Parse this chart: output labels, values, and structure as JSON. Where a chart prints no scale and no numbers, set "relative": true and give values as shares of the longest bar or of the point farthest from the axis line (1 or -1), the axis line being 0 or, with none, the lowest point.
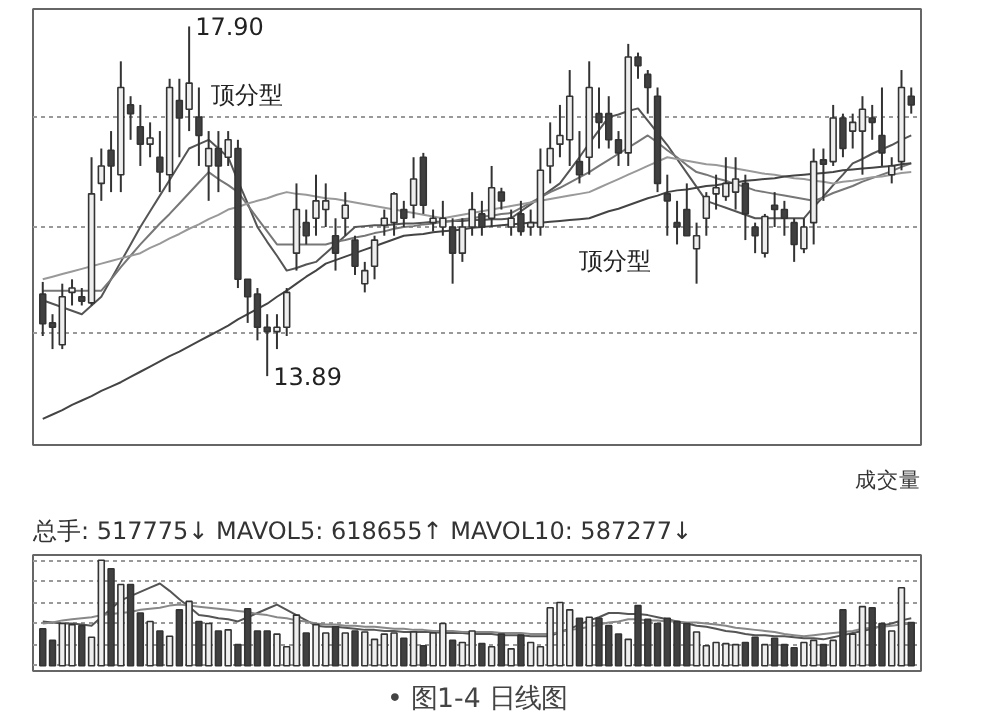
{
  "chart_data": [
    {
      "type": "candlestick",
      "categories": [
        null,
        null,
        null,
        null,
        null,
        null,
        null,
        null,
        null,
        null,
        null,
        null,
        null,
        null,
        null,
        null,
        null,
        null,
        null,
        null,
        null,
        null,
        null,
        null,
        null,
        null,
        null,
        null,
        null,
        null,
        null,
        null,
        null,
        null,
        null,
        null,
        null,
        null,
        null,
        null,
        null,
        null,
        null,
        null,
        null,
        null,
        null,
        null,
        null,
        null,
        null,
        null,
        null,
        null,
        null,
        null,
        null,
        null,
        null,
        null,
        null,
        null,
        null,
        null,
        null,
        null,
        null,
        null,
        null,
        null,
        null,
        null,
        null,
        null,
        null,
        null,
        null,
        null,
        null,
        null,
        null,
        null,
        null,
        null,
        null,
        null,
        null,
        null,
        null,
        null
      ],
      "ohlc": [
        [
          14.83,
          14.97,
          14.35,
          14.49
        ],
        [
          14.5,
          14.6,
          14.2,
          14.45
        ],
        [
          14.25,
          14.95,
          14.2,
          14.8
        ],
        [
          14.85,
          15.0,
          14.7,
          14.9
        ],
        [
          14.8,
          14.9,
          14.7,
          14.75
        ],
        [
          14.73,
          16.4,
          14.7,
          15.98
        ],
        [
          16.1,
          16.5,
          15.9,
          16.3
        ],
        [
          16.48,
          16.7,
          16.0,
          16.3
        ],
        [
          16.2,
          17.5,
          16.0,
          17.2
        ],
        [
          17.0,
          17.1,
          16.6,
          16.9
        ],
        [
          16.75,
          17.0,
          16.3,
          16.55
        ],
        [
          16.55,
          16.8,
          16.4,
          16.62
        ],
        [
          16.4,
          16.7,
          16.0,
          16.23
        ],
        [
          16.2,
          17.3,
          16.0,
          17.2
        ],
        [
          17.05,
          17.3,
          16.4,
          16.85
        ],
        [
          16.95,
          17.9,
          16.7,
          17.25
        ],
        [
          16.86,
          17.2,
          16.3,
          16.65
        ],
        [
          16.3,
          16.7,
          15.9,
          16.5
        ],
        [
          16.5,
          16.7,
          16.0,
          16.3
        ],
        [
          16.4,
          16.7,
          16.3,
          16.6
        ],
        [
          16.5,
          16.6,
          14.9,
          15.0
        ],
        [
          15.0,
          15.0,
          14.5,
          14.8
        ],
        [
          14.83,
          14.9,
          14.3,
          14.45
        ],
        [
          14.45,
          14.6,
          13.89,
          14.4
        ],
        [
          14.4,
          14.6,
          14.2,
          14.45
        ],
        [
          14.45,
          14.9,
          14.35,
          14.85
        ],
        [
          15.3,
          16.1,
          15.1,
          15.8
        ],
        [
          15.65,
          15.8,
          15.4,
          15.5
        ],
        [
          15.7,
          16.2,
          15.5,
          15.9
        ],
        [
          15.8,
          16.1,
          15.6,
          15.9
        ],
        [
          15.5,
          15.7,
          15.1,
          15.3
        ],
        [
          15.7,
          16.0,
          15.5,
          15.85
        ],
        [
          15.45,
          15.5,
          15.05,
          15.15
        ],
        [
          14.95,
          15.2,
          14.85,
          15.1
        ],
        [
          15.15,
          15.5,
          15.0,
          15.45
        ],
        [
          15.62,
          15.8,
          15.5,
          15.7
        ],
        [
          15.65,
          16.0,
          15.5,
          15.98
        ],
        [
          15.8,
          15.9,
          15.6,
          15.7
        ],
        [
          15.85,
          16.4,
          15.7,
          16.15
        ],
        [
          16.4,
          16.45,
          15.75,
          15.85
        ],
        [
          15.65,
          15.8,
          15.55,
          15.7
        ],
        [
          15.6,
          15.9,
          15.5,
          15.7
        ],
        [
          15.6,
          15.7,
          14.95,
          15.3
        ],
        [
          15.3,
          15.7,
          15.2,
          15.6
        ],
        [
          15.6,
          16.0,
          15.5,
          15.8
        ],
        [
          15.75,
          15.9,
          15.5,
          15.6
        ],
        [
          15.7,
          16.3,
          15.6,
          16.05
        ],
        [
          16.0,
          16.05,
          15.8,
          15.9
        ],
        [
          15.6,
          15.8,
          15.5,
          15.7
        ],
        [
          15.75,
          15.9,
          15.5,
          15.55
        ],
        [
          15.6,
          15.8,
          15.5,
          15.65
        ],
        [
          15.6,
          16.5,
          15.5,
          16.25
        ],
        [
          16.3,
          16.8,
          16.1,
          16.5
        ],
        [
          16.55,
          17.0,
          16.4,
          16.65
        ],
        [
          16.6,
          17.4,
          16.3,
          17.1
        ],
        [
          16.35,
          16.7,
          16.1,
          16.2
        ],
        [
          16.4,
          17.5,
          16.2,
          17.2
        ],
        [
          16.9,
          17.2,
          16.5,
          16.8
        ],
        [
          16.9,
          17.1,
          16.5,
          16.6
        ],
        [
          16.6,
          16.7,
          16.3,
          16.45
        ],
        [
          16.45,
          17.7,
          16.3,
          17.55
        ],
        [
          17.55,
          17.6,
          17.3,
          17.45
        ],
        [
          17.35,
          17.4,
          16.9,
          17.2
        ],
        [
          17.1,
          17.2,
          16.0,
          16.1
        ],
        [
          15.98,
          16.2,
          15.5,
          15.9
        ],
        [
          15.65,
          15.9,
          15.4,
          15.6
        ],
        [
          15.8,
          16.1,
          15.5,
          15.5
        ],
        [
          15.35,
          15.65,
          14.95,
          15.5
        ],
        [
          15.7,
          16.0,
          15.5,
          15.95
        ],
        [
          15.98,
          16.2,
          15.8,
          16.05
        ],
        [
          15.95,
          16.4,
          15.9,
          16.1
        ],
        [
          16.0,
          16.4,
          15.8,
          16.15
        ],
        [
          16.1,
          16.2,
          15.45,
          15.75
        ],
        [
          15.6,
          15.65,
          15.3,
          15.5
        ],
        [
          15.3,
          15.75,
          15.25,
          15.72
        ],
        [
          15.85,
          16.0,
          15.6,
          15.8
        ],
        [
          15.8,
          15.9,
          15.5,
          15.7
        ],
        [
          15.65,
          15.7,
          15.2,
          15.4
        ],
        [
          15.35,
          15.7,
          15.3,
          15.6
        ],
        [
          15.65,
          16.5,
          15.4,
          16.35
        ],
        [
          16.37,
          16.5,
          15.9,
          16.32
        ],
        [
          16.35,
          17.0,
          16.3,
          16.85
        ],
        [
          16.85,
          16.9,
          16.4,
          16.5
        ],
        [
          16.7,
          16.9,
          16.5,
          16.8
        ],
        [
          16.7,
          17.1,
          16.2,
          16.95
        ],
        [
          16.85,
          17.0,
          16.6,
          16.8
        ],
        [
          16.65,
          17.2,
          16.3,
          16.45
        ],
        [
          16.2,
          16.4,
          16.1,
          16.3
        ],
        [
          16.35,
          17.4,
          16.25,
          17.2
        ],
        [
          17.1,
          17.2,
          16.9,
          17.0
        ]
      ],
      "series": [
        {
          "type": "line",
          "color": "#555555",
          "values": [
            14.76,
            14.72,
            14.68,
            14.64,
            14.6,
            14.7,
            14.8,
            15.0,
            15.2,
            15.4,
            15.6,
            15.78,
            15.96,
            16.14,
            16.32,
            16.5,
            16.55,
            16.6,
            16.5,
            16.4,
            16.13,
            15.87,
            15.6,
            15.43,
            15.27,
            15.1,
            15.13,
            15.17,
            15.2,
            15.3,
            15.4,
            15.5,
            15.6,
            15.61,
            15.62,
            15.62,
            15.63,
            15.64,
            15.64,
            15.65,
            15.66,
            15.66,
            15.67,
            15.67,
            15.68,
            15.68,
            15.69,
            15.69,
            15.7,
            15.78,
            15.86,
            15.94,
            16.02,
            16.1,
            16.25,
            16.4,
            16.56,
            16.71,
            16.86,
            16.89,
            16.93,
            16.96,
            16.82,
            16.68,
            16.54,
            16.38,
            16.22,
            16.06,
            15.9,
            15.86,
            15.82,
            15.78,
            15.74,
            15.7,
            15.7,
            15.7,
            15.7,
            15.7,
            15.7,
            15.83,
            15.95,
            16.08,
            16.2,
            16.33,
            16.38,
            16.44,
            16.49,
            16.54,
            16.6,
            16.65
          ]
        },
        {
          "type": "line",
          "color": "#777777",
          "values": [
            14.87,
            14.87,
            14.87,
            14.87,
            14.87,
            14.87,
            14.87,
            15.0,
            15.14,
            15.27,
            15.4,
            15.52,
            15.64,
            15.75,
            15.87,
            15.99,
            16.11,
            16.23,
            16.15,
            16.08,
            16.0,
            15.85,
            15.7,
            15.55,
            15.4,
            15.4,
            15.4,
            15.4,
            15.4,
            15.4,
            15.43,
            15.45,
            15.48,
            15.5,
            15.53,
            15.55,
            15.58,
            15.6,
            15.61,
            15.63,
            15.64,
            15.66,
            15.67,
            15.69,
            15.7,
            15.72,
            15.73,
            15.75,
            15.76,
            15.82,
            15.88,
            15.94,
            16.0,
            16.05,
            16.11,
            16.17,
            16.23,
            16.3,
            16.37,
            16.44,
            16.51,
            16.58,
            16.65,
            16.57,
            16.48,
            16.4,
            16.31,
            16.23,
            16.2,
            16.16,
            16.13,
            16.09,
            16.06,
            16.02,
            16.0,
            15.98,
            15.96,
            15.94,
            15.92,
            15.9,
            15.94,
            15.99,
            16.03,
            16.07,
            16.12,
            16.16,
            16.2,
            16.24,
            16.29,
            16.33
          ]
        },
        {
          "type": "line",
          "color": "#999999",
          "values": [
            15.0,
            15.03,
            15.06,
            15.09,
            15.12,
            15.15,
            15.18,
            15.21,
            15.24,
            15.27,
            15.3,
            15.36,
            15.41,
            15.47,
            15.52,
            15.58,
            15.63,
            15.69,
            15.74,
            15.8,
            15.83,
            15.87,
            15.9,
            15.93,
            15.97,
            16.0,
            15.98,
            15.97,
            15.95,
            15.93,
            15.92,
            15.9,
            15.88,
            15.86,
            15.84,
            15.82,
            15.8,
            15.78,
            15.76,
            15.74,
            15.72,
            15.7,
            15.72,
            15.74,
            15.76,
            15.78,
            15.8,
            15.82,
            15.84,
            15.86,
            15.88,
            15.9,
            15.92,
            15.94,
            15.96,
            15.98,
            16.0,
            16.05,
            16.1,
            16.15,
            16.2,
            16.25,
            16.3,
            16.35,
            16.4,
            16.38,
            16.36,
            16.34,
            16.32,
            16.31,
            16.29,
            16.27,
            16.25,
            16.23,
            16.21,
            16.2,
            16.18,
            16.16,
            16.15,
            16.13,
            16.12,
            16.1,
            16.12,
            16.13,
            16.15,
            16.17,
            16.18,
            16.2,
            16.22,
            16.23
          ]
        },
        {
          "type": "line",
          "color": "#444444",
          "values": [
            13.4,
            13.45,
            13.5,
            13.56,
            13.61,
            13.66,
            13.72,
            13.77,
            13.82,
            13.88,
            13.94,
            14.0,
            14.06,
            14.12,
            14.17,
            14.23,
            14.29,
            14.35,
            14.41,
            14.47,
            14.54,
            14.6,
            14.66,
            14.72,
            14.8,
            14.87,
            14.95,
            15.03,
            15.1,
            15.18,
            15.22,
            15.26,
            15.3,
            15.34,
            15.38,
            15.42,
            15.46,
            15.5,
            15.51,
            15.52,
            15.54,
            15.55,
            15.56,
            15.57,
            15.59,
            15.6,
            15.61,
            15.62,
            15.63,
            15.64,
            15.65,
            15.65,
            15.66,
            15.67,
            15.68,
            15.69,
            15.7,
            15.74,
            15.78,
            15.81,
            15.85,
            15.89,
            15.93,
            15.96,
            16.0,
            16.02,
            16.03,
            16.05,
            16.07,
            16.08,
            16.1,
            16.11,
            16.13,
            16.14,
            16.15,
            16.16,
            16.18,
            16.19,
            16.2,
            16.21,
            16.22,
            16.23,
            16.25,
            16.26,
            16.27,
            16.28,
            16.29,
            16.3,
            16.32,
            16.33
          ]
        }
      ],
      "ylim": [
        13.1,
        18.1
      ],
      "yticks": [
        {
          "value": 14.39,
          "label": null
        },
        {
          "value": 15.6,
          "label": null
        },
        {
          "value": 16.86,
          "label": null
        }
      ],
      "grid": "y",
      "tick_labels": false,
      "annotations": [
        "17.90",
        "13.89",
        "顶分型",
        "顶分型"
      ]
    },
    {
      "type": "bar",
      "title": "总手: 517775↓ MAVOL5: 618655↑ MAVOL10: 587277↓",
      "relative": true,
      "categories": [
        null,
        null,
        null,
        null,
        null,
        null,
        null,
        null,
        null,
        null,
        null,
        null,
        null,
        null,
        null,
        null,
        null,
        null,
        null,
        null,
        null,
        null,
        null,
        null,
        null,
        null,
        null,
        null,
        null,
        null,
        null,
        null,
        null,
        null,
        null,
        null,
        null,
        null,
        null,
        null,
        null,
        null,
        null,
        null,
        null,
        null,
        null,
        null,
        null,
        null,
        null,
        null,
        null,
        null,
        null,
        null,
        null,
        null,
        null,
        null,
        null,
        null,
        null,
        null,
        null,
        null,
        null,
        null,
        null,
        null,
        null,
        null,
        null,
        null,
        null,
        null,
        null,
        null,
        null,
        null,
        null,
        null,
        null,
        null,
        null,
        null,
        null,
        null,
        null,
        null
      ],
      "series": [
        {
          "type": "bar",
          "values": [
            0.35,
            0.24,
            0.4,
            0.39,
            0.38,
            0.27,
            1.0,
            0.92,
            0.77,
            0.77,
            0.5,
            0.42,
            0.33,
            0.28,
            0.53,
            0.61,
            0.42,
            0.4,
            0.33,
            0.34,
            0.2,
            0.54,
            0.33,
            0.33,
            0.3,
            0.18,
            0.48,
            0.31,
            0.39,
            0.31,
            0.37,
            0.31,
            0.33,
            0.32,
            0.25,
            0.3,
            0.31,
            0.26,
            0.32,
            0.19,
            0.31,
            0.4,
            0.24,
            0.22,
            0.33,
            0.21,
            0.18,
            0.3,
            0.16,
            0.29,
            0.22,
            0.18,
            0.55,
            0.6,
            0.53,
            0.45,
            0.46,
            0.45,
            0.38,
            0.3,
            0.25,
            0.57,
            0.44,
            0.4,
            0.45,
            0.42,
            0.4,
            0.32,
            0.19,
            0.22,
            0.21,
            0.2,
            0.22,
            0.27,
            0.2,
            0.26,
            0.2,
            0.17,
            0.22,
            0.24,
            0.2,
            0.24,
            0.53,
            0.3,
            0.56,
            0.55,
            0.4,
            0.33,
            0.74,
            0.41
          ],
          "colors": [
            "#404040",
            "#404040",
            "#eeeeee",
            "#eeeeee",
            "#404040",
            "#eeeeee",
            "#eeeeee",
            "#404040",
            "#eeeeee",
            "#404040",
            "#404040",
            "#eeeeee",
            "#404040",
            "#eeeeee",
            "#404040",
            "#eeeeee",
            "#404040",
            "#eeeeee",
            "#404040",
            "#eeeeee",
            "#404040",
            "#404040",
            "#404040",
            "#404040",
            "#eeeeee",
            "#eeeeee",
            "#eeeeee",
            "#404040",
            "#eeeeee",
            "#eeeeee",
            "#404040",
            "#eeeeee",
            "#404040",
            "#eeeeee",
            "#eeeeee",
            "#eeeeee",
            "#eeeeee",
            "#404040",
            "#eeeeee",
            "#404040",
            "#eeeeee",
            "#eeeeee",
            "#404040",
            "#eeeeee",
            "#eeeeee",
            "#404040",
            "#eeeeee",
            "#404040",
            "#eeeeee",
            "#404040",
            "#eeeeee",
            "#eeeeee",
            "#eeeeee",
            "#eeeeee",
            "#eeeeee",
            "#404040",
            "#eeeeee",
            "#404040",
            "#404040",
            "#404040",
            "#eeeeee",
            "#404040",
            "#404040",
            "#404040",
            "#404040",
            "#404040",
            "#404040",
            "#eeeeee",
            "#eeeeee",
            "#eeeeee",
            "#eeeeee",
            "#eeeeee",
            "#404040",
            "#404040",
            "#eeeeee",
            "#404040",
            "#404040",
            "#404040",
            "#eeeeee",
            "#eeeeee",
            "#404040",
            "#eeeeee",
            "#404040",
            "#eeeeee",
            "#eeeeee",
            "#404040",
            "#404040",
            "#eeeeee",
            "#eeeeee",
            "#404040"
          ]
        },
        {
          "type": "line",
          "color": "#555555",
          "values": [
            0.42,
            0.41,
            0.4,
            0.4,
            0.39,
            0.38,
            0.46,
            0.54,
            0.62,
            0.66,
            0.7,
            0.74,
            0.78,
            0.71,
            0.63,
            0.56,
            0.48,
            0.47,
            0.45,
            0.44,
            0.42,
            0.46,
            0.5,
            0.54,
            0.58,
            0.53,
            0.48,
            0.43,
            0.38,
            0.37,
            0.37,
            0.36,
            0.35,
            0.34,
            0.34,
            0.33,
            0.33,
            0.32,
            0.32,
            0.32,
            0.32,
            0.31,
            0.31,
            0.31,
            0.3,
            0.3,
            0.3,
            0.29,
            0.29,
            0.29,
            0.28,
            0.28,
            0.28,
            0.32,
            0.35,
            0.39,
            0.43,
            0.46,
            0.5,
            0.5,
            0.49,
            0.49,
            0.48,
            0.46,
            0.44,
            0.42,
            0.4,
            0.38,
            0.37,
            0.35,
            0.33,
            0.32,
            0.3,
            0.29,
            0.29,
            0.28,
            0.28,
            0.27,
            0.26,
            0.26,
            0.25,
            0.27,
            0.29,
            0.31,
            0.33,
            0.35,
            0.38,
            0.4,
            0.43,
            0.45
          ]
        },
        {
          "type": "line",
          "color": "#888888",
          "values": [
            0.4,
            0.41,
            0.43,
            0.44,
            0.45,
            0.46,
            0.48,
            0.49,
            0.5,
            0.51,
            0.53,
            0.54,
            0.55,
            0.57,
            0.58,
            0.57,
            0.56,
            0.55,
            0.54,
            0.53,
            0.52,
            0.51,
            0.49,
            0.48,
            0.46,
            0.45,
            0.43,
            0.42,
            0.4,
            0.39,
            0.39,
            0.38,
            0.38,
            0.37,
            0.37,
            0.36,
            0.35,
            0.35,
            0.34,
            0.34,
            0.33,
            0.33,
            0.33,
            0.32,
            0.32,
            0.32,
            0.32,
            0.31,
            0.31,
            0.31,
            0.3,
            0.3,
            0.3,
            0.32,
            0.34,
            0.35,
            0.37,
            0.39,
            0.41,
            0.42,
            0.44,
            0.44,
            0.43,
            0.43,
            0.42,
            0.42,
            0.41,
            0.41,
            0.4,
            0.39,
            0.38,
            0.36,
            0.35,
            0.34,
            0.33,
            0.32,
            0.3,
            0.29,
            0.28,
            0.29,
            0.3,
            0.31,
            0.32,
            0.33,
            0.35,
            0.36,
            0.37,
            0.38,
            0.39,
            0.4
          ]
        }
      ],
      "grid": "y",
      "tick_labels": false,
      "annotations": [
        "成交量",
        "• 图1-4 日线图"
      ]
    }
  ]
}
